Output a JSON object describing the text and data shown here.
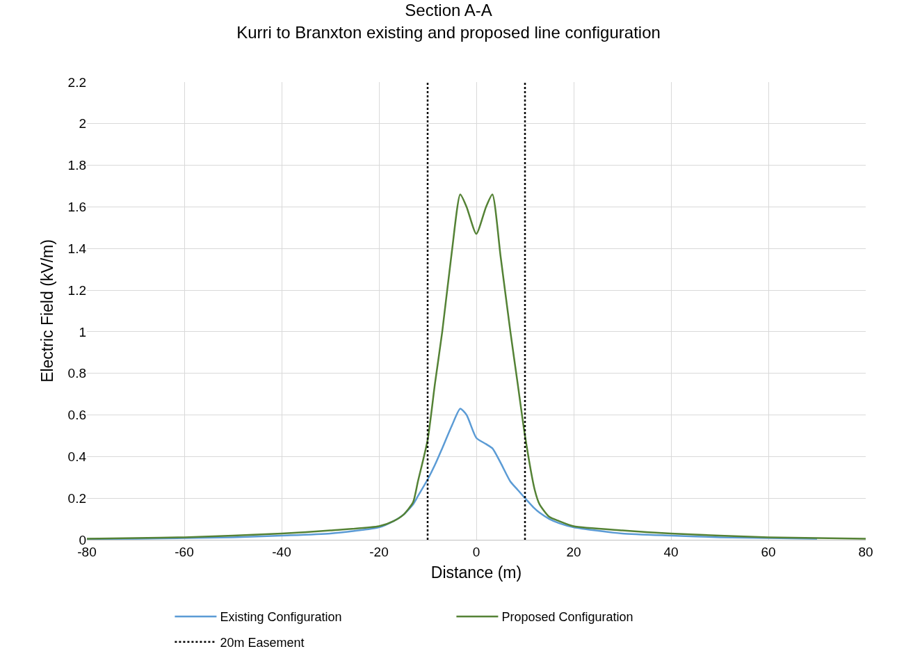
{
  "chart_data": {
    "type": "line",
    "title": "Section A-A",
    "subtitle": "Kurri to Branxton existing and proposed line configuration",
    "xlabel": "Distance (m)",
    "ylabel": "Electric Field (kV/m)",
    "x": [
      -80,
      -70,
      -60,
      -50,
      -40,
      -30,
      -20,
      -17,
      -15,
      -13,
      -12,
      -10,
      -8.5,
      -7,
      -5,
      -3.3,
      -2,
      0,
      2,
      3.3,
      5,
      7,
      8.5,
      10,
      12,
      13,
      15,
      17,
      20,
      30,
      40,
      50,
      60,
      70,
      80
    ],
    "series": [
      {
        "name": "Existing Configuration",
        "color": "#5b9bd5",
        "values": [
          0.004,
          0.005,
          0.008,
          0.012,
          0.02,
          0.03,
          0.06,
          0.09,
          0.12,
          0.17,
          0.21,
          0.29,
          0.36,
          0.44,
          0.55,
          0.63,
          0.6,
          0.49,
          0.46,
          0.44,
          0.37,
          0.28,
          0.24,
          0.2,
          0.15,
          0.13,
          0.1,
          0.08,
          0.06,
          0.03,
          0.02,
          0.012,
          0.008,
          0.005,
          null
        ]
      },
      {
        "name": "Proposed Configuration",
        "color": "#548235",
        "values": [
          0.005,
          0.008,
          0.012,
          0.02,
          0.03,
          0.045,
          0.065,
          0.09,
          0.12,
          0.18,
          0.28,
          0.48,
          0.75,
          1.0,
          1.39,
          1.66,
          1.6,
          1.47,
          1.6,
          1.66,
          1.36,
          1.0,
          0.75,
          0.5,
          0.24,
          0.17,
          0.11,
          0.09,
          0.065,
          0.045,
          0.03,
          0.02,
          0.012,
          0.008,
          0.005
        ]
      }
    ],
    "ref_lines": [
      {
        "axis": "x",
        "value": -10,
        "label": "20m Easement",
        "color": "#000000",
        "line_style": "dotted"
      },
      {
        "axis": "x",
        "value": 10,
        "color": "#000000",
        "line_style": "dotted"
      }
    ],
    "xlim": [
      -80,
      80
    ],
    "xticks": [
      -80,
      -60,
      -40,
      -20,
      0,
      20,
      40,
      60,
      80
    ],
    "ylim": [
      0,
      2.2
    ],
    "yticks": [
      0,
      0.2,
      0.4,
      0.6,
      0.8,
      1,
      1.2,
      1.4,
      1.6,
      1.8,
      2,
      2.2
    ],
    "grid": true,
    "legend": "bottom",
    "marker": "none",
    "line_style": "solid"
  }
}
